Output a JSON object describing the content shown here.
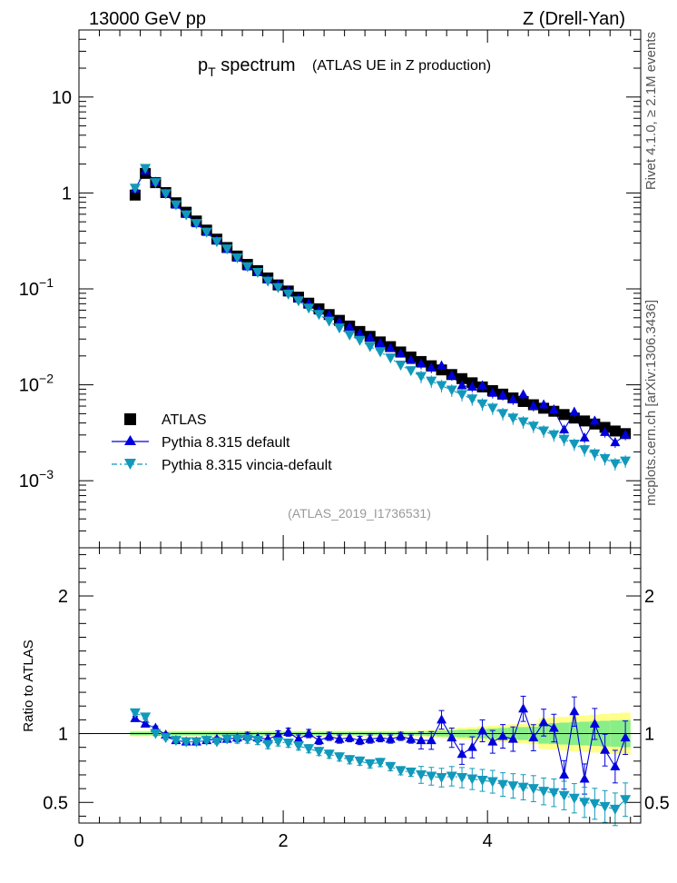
{
  "header": {
    "energy_label": "13000 GeV pp",
    "process_label": "Z (Drell-Yan)"
  },
  "plot": {
    "title_main": "p",
    "title_sub": "T",
    "title_rest": " spectrum",
    "title_note": "(ATLAS UE in Z production)",
    "analysis_id": "(ATLAS_2019_I1736531)",
    "side_label_top": "Rivet 4.1.0, ≥ 2.1M events",
    "side_label_bottom": "mcplots.cern.ch [arXiv:1306.3436]",
    "ratio_ylabel": "Ratio to ATLAS"
  },
  "legend": [
    {
      "name": "ATLAS",
      "color": "#000000",
      "marker": "square"
    },
    {
      "name": "Pythia 8.315 default",
      "color": "#0000dd",
      "marker": "triangle-up"
    },
    {
      "name": "Pythia 8.315 vincia-default",
      "color": "#1199bb",
      "marker": "triangle-down"
    }
  ],
  "chart_data": [
    {
      "type": "scatter",
      "title": "pT spectrum (ATLAS UE in Z production)",
      "yscale": "log",
      "xlim": [
        0,
        5.5
      ],
      "ylim": [
        0.0002,
        50
      ],
      "xticks": [
        0,
        2,
        4
      ],
      "yticks": [
        {
          "value": 0.001,
          "base": "10",
          "exp": "−3"
        },
        {
          "value": 0.01,
          "base": "10",
          "exp": "−2"
        },
        {
          "value": 0.1,
          "base": "10",
          "exp": "−1"
        },
        {
          "value": 1,
          "label": "1"
        },
        {
          "value": 10,
          "label": "10"
        }
      ],
      "x": [
        0.55,
        0.65,
        0.75,
        0.85,
        0.95,
        1.05,
        1.15,
        1.25,
        1.35,
        1.45,
        1.55,
        1.65,
        1.75,
        1.85,
        1.95,
        2.05,
        2.15,
        2.25,
        2.35,
        2.45,
        2.55,
        2.65,
        2.75,
        2.85,
        2.95,
        3.05,
        3.15,
        3.25,
        3.35,
        3.45,
        3.55,
        3.65,
        3.75,
        3.85,
        3.95,
        4.05,
        4.15,
        4.25,
        4.35,
        4.45,
        4.55,
        4.65,
        4.75,
        4.85,
        4.95,
        5.05,
        5.15,
        5.25,
        5.35
      ],
      "series": [
        {
          "name": "ATLAS",
          "values": [
            0.95,
            1.6,
            1.28,
            1.01,
            0.79,
            0.63,
            0.51,
            0.41,
            0.33,
            0.27,
            0.22,
            0.18,
            0.155,
            0.13,
            0.11,
            0.095,
            0.082,
            0.071,
            0.062,
            0.054,
            0.047,
            0.041,
            0.036,
            0.032,
            0.028,
            0.025,
            0.022,
            0.0195,
            0.0175,
            0.0158,
            0.0143,
            0.0128,
            0.0116,
            0.0105,
            0.0095,
            0.0087,
            0.008,
            0.0073,
            0.0067,
            0.0062,
            0.0057,
            0.0053,
            0.0049,
            0.0045,
            0.0042,
            0.0039,
            0.0036,
            0.0033,
            0.0031
          ]
        },
        {
          "name": "Pythia 8.315 default",
          "values": [
            1.1,
            1.7,
            1.3,
            1.0,
            0.75,
            0.6,
            0.48,
            0.39,
            0.32,
            0.26,
            0.21,
            0.17,
            0.15,
            0.125,
            0.11,
            0.095,
            0.079,
            0.07,
            0.059,
            0.053,
            0.045,
            0.04,
            0.034,
            0.031,
            0.027,
            0.024,
            0.021,
            0.018,
            0.0165,
            0.015,
            0.0158,
            0.0125,
            0.0098,
            0.0095,
            0.0098,
            0.0082,
            0.0078,
            0.007,
            0.0079,
            0.006,
            0.0062,
            0.0055,
            0.0034,
            0.0052,
            0.0028,
            0.0042,
            0.0032,
            0.0025,
            0.003
          ]
        },
        {
          "name": "Pythia 8.315 vincia-default",
          "values": [
            1.12,
            1.8,
            1.28,
            0.98,
            0.75,
            0.59,
            0.48,
            0.39,
            0.31,
            0.26,
            0.21,
            0.17,
            0.148,
            0.12,
            0.103,
            0.088,
            0.075,
            0.063,
            0.054,
            0.046,
            0.039,
            0.033,
            0.029,
            0.025,
            0.022,
            0.019,
            0.016,
            0.014,
            0.0122,
            0.0109,
            0.0098,
            0.0088,
            0.0079,
            0.0071,
            0.0063,
            0.0057,
            0.005,
            0.0045,
            0.0041,
            0.0037,
            0.0033,
            0.003,
            0.0027,
            0.0024,
            0.0021,
            0.0019,
            0.0017,
            0.0015,
            0.0016
          ]
        }
      ]
    },
    {
      "type": "scatter",
      "title": "Ratio to ATLAS",
      "ylabel": "Ratio to ATLAS",
      "xlim": [
        0,
        5.5
      ],
      "ylim": [
        0.35,
        2.35
      ],
      "xticks": [
        0,
        2,
        4
      ],
      "yticks": [
        0.5,
        1,
        2
      ],
      "x": [
        0.55,
        0.65,
        0.75,
        0.85,
        0.95,
        1.05,
        1.15,
        1.25,
        1.35,
        1.45,
        1.55,
        1.65,
        1.75,
        1.85,
        1.95,
        2.05,
        2.15,
        2.25,
        2.35,
        2.45,
        2.55,
        2.65,
        2.75,
        2.85,
        2.95,
        3.05,
        3.15,
        3.25,
        3.35,
        3.45,
        3.55,
        3.65,
        3.75,
        3.85,
        3.95,
        4.05,
        4.15,
        4.25,
        4.35,
        4.45,
        4.55,
        4.65,
        4.75,
        4.85,
        4.95,
        5.05,
        5.15,
        5.25,
        5.35
      ],
      "series": [
        {
          "name": "Pythia 8.315 default",
          "values": [
            1.11,
            1.07,
            1.04,
            0.99,
            0.95,
            0.94,
            0.94,
            0.95,
            0.96,
            0.96,
            0.97,
            0.98,
            0.97,
            0.96,
            0.99,
            1.01,
            0.96,
            1.0,
            0.95,
            0.98,
            0.96,
            0.97,
            0.95,
            0.96,
            0.97,
            0.96,
            0.98,
            0.96,
            0.95,
            0.95,
            1.1,
            0.97,
            0.85,
            0.9,
            1.02,
            0.94,
            0.98,
            0.96,
            1.18,
            0.97,
            1.08,
            1.04,
            0.7,
            1.16,
            0.67,
            1.07,
            0.88,
            0.76,
            0.97
          ]
        },
        {
          "name": "Pythia 8.315 vincia-default",
          "values": [
            1.15,
            1.12,
            1.0,
            0.97,
            0.95,
            0.94,
            0.94,
            0.95,
            0.94,
            0.96,
            0.96,
            0.96,
            0.95,
            0.92,
            0.94,
            0.93,
            0.91,
            0.89,
            0.87,
            0.85,
            0.83,
            0.81,
            0.8,
            0.78,
            0.79,
            0.76,
            0.73,
            0.72,
            0.7,
            0.69,
            0.68,
            0.69,
            0.68,
            0.67,
            0.66,
            0.65,
            0.63,
            0.62,
            0.61,
            0.6,
            0.58,
            0.57,
            0.55,
            0.53,
            0.5,
            0.49,
            0.47,
            0.45,
            0.52
          ]
        }
      ]
    }
  ]
}
